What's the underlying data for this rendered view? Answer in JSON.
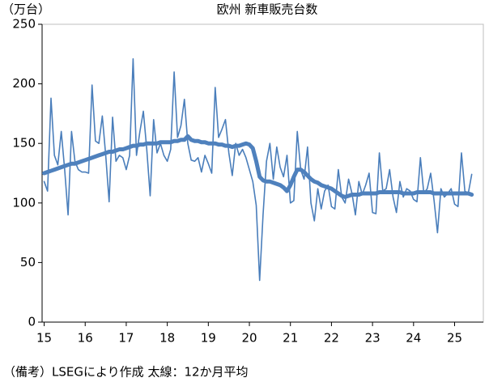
{
  "chart_data": {
    "type": "line",
    "title": "欧州 新車販売台数",
    "y_unit_label": "（万台）",
    "note": "（備考）LSEGにより作成 太線：12か月平均",
    "x": [
      15,
      15.083,
      15.167,
      15.25,
      15.333,
      15.417,
      15.5,
      15.583,
      15.667,
      15.75,
      15.833,
      15.917,
      16,
      16.083,
      16.167,
      16.25,
      16.333,
      16.417,
      16.5,
      16.583,
      16.667,
      16.75,
      16.833,
      16.917,
      17,
      17.083,
      17.167,
      17.25,
      17.333,
      17.417,
      17.5,
      17.583,
      17.667,
      17.75,
      17.833,
      17.917,
      18,
      18.083,
      18.167,
      18.25,
      18.333,
      18.417,
      18.5,
      18.583,
      18.667,
      18.75,
      18.833,
      18.917,
      19,
      19.083,
      19.167,
      19.25,
      19.333,
      19.417,
      19.5,
      19.583,
      19.667,
      19.75,
      19.833,
      19.917,
      20,
      20.083,
      20.167,
      20.25,
      20.333,
      20.417,
      20.5,
      20.583,
      20.667,
      20.75,
      20.833,
      20.917,
      21,
      21.083,
      21.167,
      21.25,
      21.333,
      21.417,
      21.5,
      21.583,
      21.667,
      21.75,
      21.833,
      21.917,
      22,
      22.083,
      22.167,
      22.25,
      22.333,
      22.417,
      22.5,
      22.583,
      22.667,
      22.75,
      22.833,
      22.917,
      23,
      23.083,
      23.167,
      23.25,
      23.333,
      23.417,
      23.5,
      23.583,
      23.667,
      23.75,
      23.833,
      23.917,
      24,
      24.083,
      24.167,
      24.25,
      24.333,
      24.417,
      24.5,
      24.583,
      24.667,
      24.75,
      24.833,
      24.917,
      25,
      25.083,
      25.167,
      25.25,
      25.333,
      25.417
    ],
    "series": [
      {
        "color": "#4a7ebb",
        "width": 1.6,
        "values": [
          118,
          110,
          188,
          140,
          132,
          160,
          128,
          90,
          160,
          135,
          128,
          126,
          126,
          125,
          199,
          152,
          150,
          173,
          140,
          101,
          172,
          135,
          140,
          138,
          128,
          140,
          221,
          140,
          160,
          177,
          145,
          106,
          170,
          142,
          150,
          140,
          135,
          145,
          210,
          155,
          165,
          187,
          150,
          136,
          135,
          138,
          126,
          140,
          133,
          125,
          197,
          155,
          162,
          170,
          142,
          123,
          150,
          140,
          145,
          138,
          128,
          118,
          98,
          35,
          90,
          135,
          150,
          120,
          147,
          130,
          122,
          140,
          100,
          102,
          160,
          128,
          120,
          147,
          100,
          85,
          112,
          95,
          110,
          115,
          97,
          95,
          128,
          105,
          100,
          120,
          108,
          90,
          118,
          107,
          115,
          125,
          92,
          91,
          142,
          110,
          112,
          128,
          105,
          92,
          118,
          105,
          112,
          110,
          103,
          101,
          138,
          108,
          112,
          125,
          102,
          75,
          112,
          105,
          108,
          112,
          99,
          97,
          142,
          110,
          108,
          124
        ]
      },
      {
        "color": "#4f81bd",
        "width": 5,
        "values": [
          125,
          126,
          127,
          128,
          129,
          130,
          131,
          132,
          133,
          133,
          134,
          135,
          136,
          137,
          138,
          139,
          140,
          141,
          142,
          143,
          143,
          144,
          145,
          145,
          146,
          147,
          148,
          148,
          149,
          149,
          150,
          150,
          150,
          150,
          151,
          151,
          151,
          151,
          152,
          152,
          153,
          153,
          156,
          153,
          152,
          152,
          151,
          151,
          150,
          150,
          150,
          149,
          149,
          148,
          148,
          147,
          148,
          148,
          149,
          150,
          149,
          146,
          135,
          122,
          119,
          118,
          118,
          117,
          116,
          115,
          113,
          110,
          115,
          122,
          128,
          128,
          126,
          123,
          120,
          118,
          117,
          115,
          114,
          113,
          112,
          110,
          108,
          106,
          105,
          106,
          107,
          107,
          107,
          108,
          108,
          108,
          108,
          108,
          109,
          109,
          109,
          109,
          109,
          109,
          109,
          108,
          108,
          108,
          108,
          109,
          109,
          109,
          109,
          109,
          108,
          108,
          108,
          108,
          108,
          108,
          108,
          108,
          108,
          108,
          108,
          107
        ]
      }
    ],
    "xlim": [
      14.95,
      25.7
    ],
    "xticks": [
      15,
      16,
      17,
      18,
      19,
      20,
      21,
      22,
      23,
      24,
      25
    ],
    "ylim": [
      0,
      250
    ],
    "yticks": [
      0,
      50,
      100,
      150,
      200,
      250
    ],
    "grid": false
  }
}
